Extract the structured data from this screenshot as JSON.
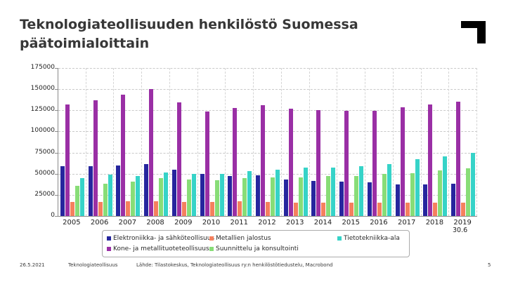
{
  "slide": {
    "title_line1": "Teknologiateollisuuden henkilöstö Suomessa",
    "title_line2": "päätoimialoittain",
    "note": "30.6",
    "footer": {
      "date": "26.5.2021",
      "brand": "Teknologiateollisuus",
      "source": "Lähde: Tilastokeskus, Teknologiateollisuus ry:n henkilöstötiedustelu, Macrobond",
      "page": "5"
    }
  },
  "chart_data": {
    "type": "bar",
    "title": "",
    "xlabel": "",
    "ylabel": "",
    "ylim": [
      0,
      175000
    ],
    "ytick_step": 25000,
    "grid": true,
    "legend_position": "bottom",
    "categories": [
      "2005",
      "2006",
      "2007",
      "2008",
      "2009",
      "2010",
      "2011",
      "2012",
      "2013",
      "2014",
      "2015",
      "2016",
      "2017",
      "2018",
      "2019"
    ],
    "series": [
      {
        "name": "Elektroniikka- ja sähköteollisuus",
        "color": "#26269E",
        "values": [
          59000,
          59000,
          60000,
          61000,
          54500,
          50000,
          47000,
          48500,
          43000,
          41500,
          40500,
          40000,
          37500,
          37000,
          38000
        ]
      },
      {
        "name": "Kone- ja metallituoteteollisuus",
        "color": "#9A2FA5",
        "values": [
          132000,
          136500,
          143500,
          150000,
          134500,
          123500,
          128000,
          131000,
          127000,
          125500,
          124500,
          124500,
          128500,
          132000,
          135500
        ]
      },
      {
        "name": "Metallien jalostus",
        "color": "#F5805E",
        "values": [
          17000,
          17000,
          17500,
          17500,
          17000,
          16500,
          17500,
          17000,
          16000,
          16000,
          15500,
          15500,
          15500,
          16000,
          15500
        ]
      },
      {
        "name": "Suunnittelu ja konsultointi",
        "color": "#88DD77",
        "values": [
          35500,
          38500,
          40500,
          44500,
          43500,
          42000,
          44500,
          45500,
          46000,
          47000,
          47500,
          50000,
          50500,
          53500,
          56500
        ]
      },
      {
        "name": "Tietotekniikka-ala",
        "color": "#36D3C8",
        "values": [
          44500,
          49000,
          47000,
          51500,
          49500,
          50000,
          53000,
          54500,
          57000,
          57500,
          58500,
          61500,
          67500,
          70500,
          74500
        ]
      }
    ],
    "legend_order": [
      0,
      2,
      4,
      1,
      3
    ]
  }
}
